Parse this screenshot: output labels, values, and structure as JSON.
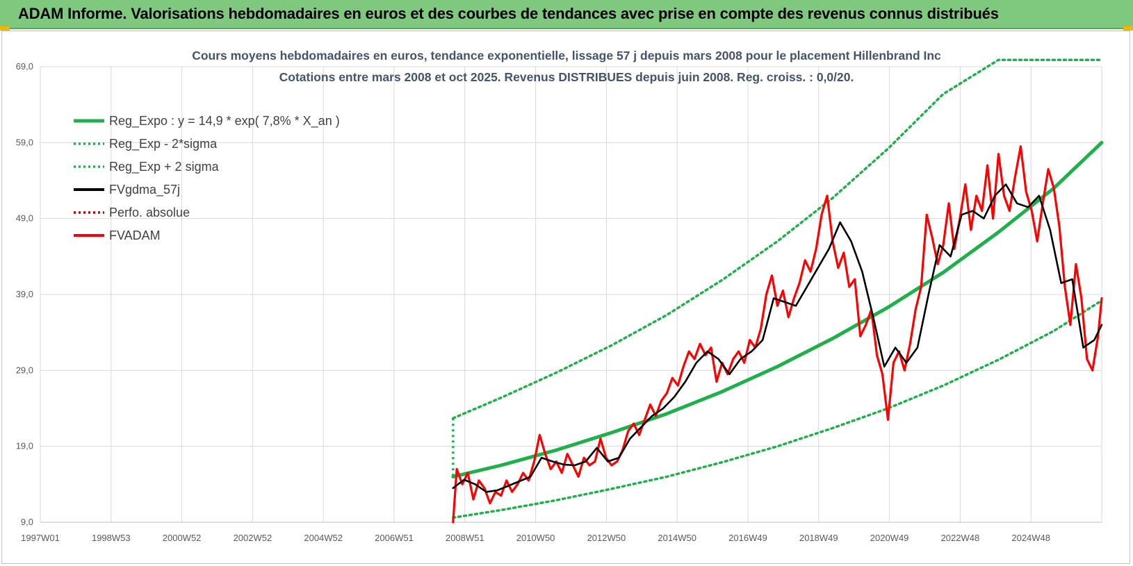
{
  "banner": {
    "title": "ADAM Informe. Valorisations hebdomadaires en euros et des courbes de tendances avec prise en compte des revenus connus distribués"
  },
  "colors": {
    "banner_bg": "#7fc97f",
    "regression": "#1fb04b",
    "sigma_bands": "#1fb04b",
    "smoothed": "#000000",
    "price": "#ff0000",
    "perf_absolue": "#c00000",
    "title_text": "#44546a"
  },
  "chart_data": {
    "type": "line",
    "title_lines": [
      "Cours moyens hebdomadaires en euros, tendance exponentielle, lissage 57 j depuis mars 2008 pour le placement Hillenbrand Inc",
      "Cotations entre mars 2008 et oct 2025. Revenus DISTRIBUES depuis juin 2008. Reg. croiss. : 0,0/20."
    ],
    "x_tick_labels": [
      "1997W01",
      "1998W53",
      "2000W52",
      "2002W52",
      "2004W52",
      "2006W51",
      "2008W51",
      "2010W50",
      "2012W50",
      "2014W50",
      "2016W49",
      "2018W49",
      "2020W49",
      "2022W48",
      "2024W48"
    ],
    "x_range": [
      1997.0,
      2025.8
    ],
    "y_ticks": [
      "9,0",
      "19,0",
      "29,0",
      "39,0",
      "49,0",
      "59,0",
      "69,0"
    ],
    "ylim": [
      9,
      69
    ],
    "grid": true,
    "legend_position": "top-left",
    "legend": [
      {
        "key": "reg_expo",
        "label": "Reg_Expo : y = 14,9 * exp( 7,8% *  X_an )",
        "style": "solid",
        "color": "#1fb04b"
      },
      {
        "key": "reg_minus",
        "label": "Reg_Exp - 2*sigma",
        "style": "dotted",
        "color": "#1fb04b"
      },
      {
        "key": "reg_plus",
        "label": "Reg_Exp + 2 sigma",
        "style": "dotted",
        "color": "#1fb04b"
      },
      {
        "key": "fvgdma",
        "label": "FVgdma_57j",
        "style": "solid",
        "color": "#000000"
      },
      {
        "key": "perfo",
        "label": "Perfo. absolue",
        "style": "dotted",
        "color": "#c00000"
      },
      {
        "key": "fvadam",
        "label": "FVADAM",
        "style": "solid",
        "color": "#ff0000"
      }
    ],
    "series": [
      {
        "name": "Reg_Expo : y = 14,9 * exp( 7,8% *  X_an )",
        "x": [
          2008.2,
          2009.5,
          2011.0,
          2012.5,
          2014.0,
          2015.5,
          2017.0,
          2018.5,
          2020.0,
          2021.5,
          2023.0,
          2024.5,
          2025.8
        ],
        "values": [
          15.0,
          16.5,
          18.5,
          20.8,
          23.3,
          26.2,
          29.5,
          33.2,
          37.3,
          41.9,
          47.2,
          53.0,
          59.0
        ]
      },
      {
        "name": "Reg_Exp - 2*sigma",
        "x": [
          2008.2,
          2009.5,
          2011.0,
          2012.5,
          2014.0,
          2015.5,
          2017.0,
          2018.5,
          2020.0,
          2021.5,
          2023.0,
          2024.5,
          2025.8
        ],
        "values": [
          9.6,
          10.6,
          11.9,
          13.4,
          15.0,
          16.9,
          19.0,
          21.4,
          24.0,
          27.0,
          30.4,
          34.2,
          38.2
        ]
      },
      {
        "name": "Reg_Exp + 2 sigma",
        "x": [
          2008.2,
          2009.5,
          2011.0,
          2012.5,
          2014.0,
          2015.5,
          2017.0,
          2018.5,
          2020.0,
          2021.5,
          2023.0,
          2023.1,
          2025.8
        ],
        "values": [
          22.7,
          25.4,
          28.7,
          32.3,
          36.3,
          40.9,
          46.0,
          51.7,
          58.2,
          65.4,
          69.9,
          69.9,
          69.9
        ]
      },
      {
        "name": "FVgdma_57j",
        "x": [
          2008.2,
          2008.5,
          2008.8,
          2009.1,
          2009.4,
          2009.7,
          2010.0,
          2010.3,
          2010.6,
          2010.9,
          2011.2,
          2011.5,
          2011.8,
          2012.1,
          2012.4,
          2012.7,
          2013.0,
          2013.3,
          2013.6,
          2013.9,
          2014.2,
          2014.5,
          2014.8,
          2015.1,
          2015.4,
          2015.7,
          2016.0,
          2016.3,
          2016.6,
          2016.9,
          2017.2,
          2017.5,
          2017.8,
          2018.1,
          2018.4,
          2018.7,
          2019.0,
          2019.3,
          2019.6,
          2019.9,
          2020.2,
          2020.5,
          2020.8,
          2021.1,
          2021.4,
          2021.7,
          2022.0,
          2022.3,
          2022.6,
          2022.9,
          2023.2,
          2023.5,
          2023.8,
          2024.1,
          2024.4,
          2024.7,
          2025.0,
          2025.3,
          2025.6,
          2025.8
        ],
        "values": [
          13.5,
          14.6,
          14.0,
          13.0,
          13.2,
          13.8,
          14.4,
          15.0,
          17.5,
          17.0,
          16.6,
          16.5,
          17.0,
          18.8,
          17.0,
          17.5,
          20.0,
          21.5,
          23.0,
          24.0,
          25.5,
          27.5,
          30.0,
          31.5,
          30.5,
          28.5,
          30.5,
          31.5,
          33.0,
          38.5,
          38.0,
          37.5,
          40.0,
          42.5,
          45.0,
          48.5,
          46.0,
          42.0,
          36.0,
          29.5,
          32.0,
          30.0,
          32.0,
          39.0,
          45.5,
          44.0,
          49.5,
          50.0,
          49.0,
          52.0,
          53.5,
          51.0,
          50.5,
          52.0,
          47.5,
          40.5,
          41.0,
          32.0,
          33.0,
          35.0
        ]
      },
      {
        "name": "FVADAM",
        "x": [
          2008.2,
          2008.3,
          2008.45,
          2008.6,
          2008.75,
          2008.9,
          2009.05,
          2009.2,
          2009.35,
          2009.5,
          2009.65,
          2009.8,
          2009.95,
          2010.1,
          2010.25,
          2010.4,
          2010.55,
          2010.7,
          2010.85,
          2011.0,
          2011.15,
          2011.3,
          2011.45,
          2011.6,
          2011.75,
          2011.9,
          2012.05,
          2012.2,
          2012.35,
          2012.5,
          2012.65,
          2012.8,
          2012.95,
          2013.1,
          2013.25,
          2013.4,
          2013.55,
          2013.7,
          2013.85,
          2014.0,
          2014.15,
          2014.3,
          2014.45,
          2014.6,
          2014.75,
          2014.9,
          2015.05,
          2015.2,
          2015.35,
          2015.5,
          2015.65,
          2015.8,
          2015.95,
          2016.1,
          2016.25,
          2016.4,
          2016.55,
          2016.7,
          2016.85,
          2017.0,
          2017.15,
          2017.3,
          2017.45,
          2017.6,
          2017.75,
          2017.9,
          2018.05,
          2018.2,
          2018.35,
          2018.5,
          2018.65,
          2018.8,
          2018.95,
          2019.1,
          2019.25,
          2019.4,
          2019.55,
          2019.7,
          2019.85,
          2020.0,
          2020.15,
          2020.3,
          2020.45,
          2020.6,
          2020.75,
          2020.9,
          2021.05,
          2021.2,
          2021.35,
          2021.5,
          2021.65,
          2021.8,
          2021.95,
          2022.1,
          2022.25,
          2022.4,
          2022.55,
          2022.7,
          2022.85,
          2023.0,
          2023.15,
          2023.3,
          2023.45,
          2023.6,
          2023.75,
          2023.9,
          2024.05,
          2024.2,
          2024.35,
          2024.5,
          2024.65,
          2024.8,
          2024.95,
          2025.1,
          2025.25,
          2025.4,
          2025.55,
          2025.7,
          2025.8
        ],
        "values": [
          9.0,
          16.0,
          14.0,
          15.5,
          12.0,
          14.5,
          13.5,
          11.5,
          13.0,
          12.5,
          14.5,
          13.0,
          14.0,
          15.5,
          14.5,
          17.0,
          20.5,
          18.0,
          16.0,
          17.0,
          15.5,
          18.0,
          16.5,
          15.0,
          17.5,
          16.5,
          17.0,
          20.0,
          17.5,
          16.5,
          17.0,
          18.5,
          21.0,
          22.0,
          20.5,
          22.5,
          24.5,
          23.0,
          25.0,
          26.0,
          28.0,
          27.0,
          29.5,
          31.5,
          30.5,
          32.5,
          31.0,
          32.0,
          27.5,
          30.0,
          28.5,
          30.5,
          31.5,
          30.0,
          33.0,
          32.0,
          34.5,
          39.0,
          41.5,
          37.5,
          39.5,
          36.0,
          38.5,
          40.5,
          43.5,
          42.0,
          45.0,
          49.5,
          52.0,
          46.0,
          42.5,
          44.5,
          40.0,
          41.0,
          33.5,
          35.0,
          37.0,
          31.0,
          28.5,
          22.5,
          30.0,
          31.5,
          29.0,
          32.5,
          37.0,
          40.0,
          49.5,
          46.5,
          43.0,
          45.5,
          51.0,
          45.0,
          49.0,
          53.5,
          47.5,
          52.0,
          50.0,
          56.0,
          49.0,
          57.5,
          52.0,
          50.0,
          54.5,
          58.5,
          52.5,
          50.0,
          46.0,
          51.0,
          55.5,
          53.0,
          48.0,
          40.0,
          35.0,
          43.0,
          38.5,
          30.5,
          29.0,
          33.5,
          38.5
        ]
      }
    ]
  }
}
